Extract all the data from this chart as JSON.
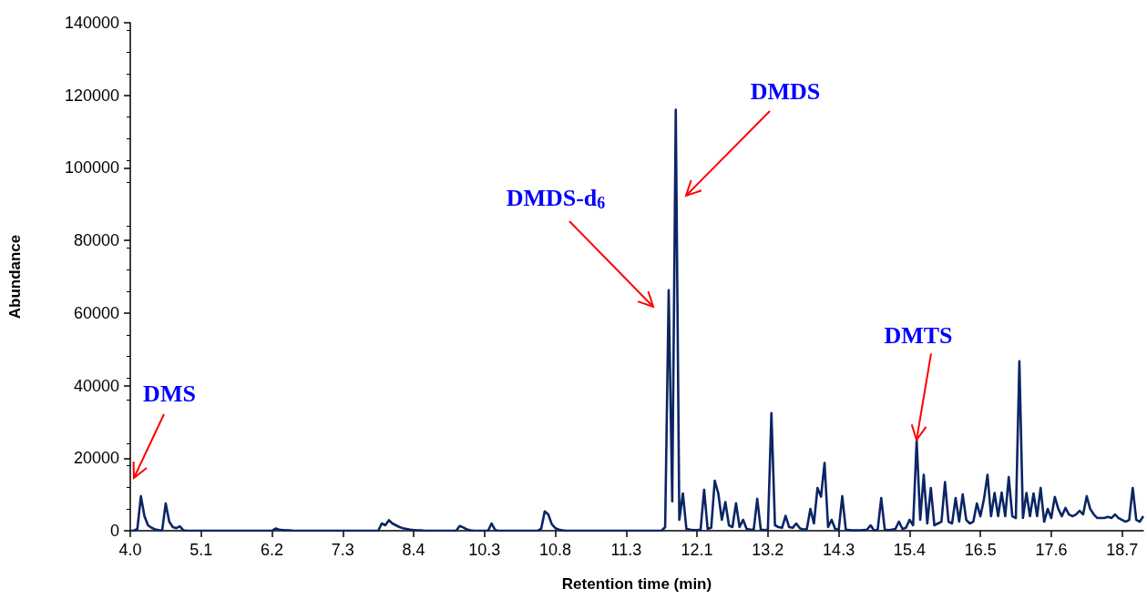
{
  "chart_data": {
    "type": "line",
    "xlabel": "Retention time (min)",
    "ylabel": "Abundance",
    "categories": [
      "4.0",
      null,
      null,
      null,
      null,
      null,
      null,
      null,
      null,
      null,
      null,
      null,
      null,
      null,
      null,
      null,
      null,
      null,
      null,
      null,
      "5.1",
      null,
      null,
      null,
      null,
      null,
      null,
      null,
      null,
      null,
      null,
      null,
      null,
      null,
      null,
      null,
      null,
      null,
      null,
      null,
      "6.2",
      null,
      null,
      null,
      null,
      null,
      null,
      null,
      null,
      null,
      null,
      null,
      null,
      null,
      null,
      null,
      null,
      null,
      null,
      null,
      "7.3",
      null,
      null,
      null,
      null,
      null,
      null,
      null,
      null,
      null,
      null,
      null,
      null,
      null,
      null,
      null,
      null,
      null,
      null,
      null,
      "8.4",
      null,
      null,
      null,
      null,
      null,
      null,
      null,
      null,
      null,
      null,
      null,
      null,
      null,
      null,
      null,
      null,
      null,
      null,
      null,
      "10.3",
      null,
      null,
      null,
      null,
      null,
      null,
      null,
      null,
      null,
      null,
      null,
      null,
      null,
      null,
      null,
      null,
      null,
      null,
      null,
      "10.8",
      null,
      null,
      null,
      null,
      null,
      null,
      null,
      null,
      null,
      null,
      null,
      null,
      null,
      null,
      null,
      null,
      null,
      null,
      null,
      "11.3",
      null,
      null,
      null,
      null,
      null,
      null,
      null,
      null,
      null,
      null,
      null,
      null,
      null,
      null,
      null,
      null,
      null,
      null,
      null,
      "12.1",
      null,
      null,
      null,
      null,
      null,
      null,
      null,
      null,
      null,
      null,
      null,
      null,
      null,
      null,
      null,
      null,
      null,
      null,
      null,
      "13.2",
      null,
      null,
      null,
      null,
      null,
      null,
      null,
      null,
      null,
      null,
      null,
      null,
      null,
      null,
      null,
      null,
      null,
      null,
      null,
      "14.3",
      null,
      null,
      null,
      null,
      null,
      null,
      null,
      null,
      null,
      null,
      null,
      null,
      null,
      null,
      null,
      null,
      null,
      null,
      null,
      "15.4",
      null,
      null,
      null,
      null,
      null,
      null,
      null,
      null,
      null,
      null,
      null,
      null,
      null,
      null,
      null,
      null,
      null,
      null,
      null,
      "16.5",
      null,
      null,
      null,
      null,
      null,
      null,
      null,
      null,
      null,
      null,
      null,
      null,
      null,
      null,
      null,
      null,
      null,
      null,
      null,
      "17.6",
      null,
      null,
      null,
      null,
      null,
      null,
      null,
      null,
      null,
      null,
      null,
      null,
      null,
      null,
      null,
      null,
      null,
      null,
      null,
      "18.7",
      null,
      null,
      null,
      null,
      null,
      null
    ],
    "ylim": [
      0,
      140000
    ],
    "yticks": [
      0,
      20000,
      40000,
      60000,
      80000,
      100000,
      120000,
      140000
    ],
    "grid": false,
    "marker": "none",
    "line_style": "solid",
    "series": [
      {
        "color": "#0b2565",
        "values": [
          0,
          0,
          500,
          9500,
          4000,
          1500,
          800,
          400,
          200,
          100,
          7500,
          2500,
          1000,
          700,
          1200,
          100,
          0,
          0,
          0,
          0,
          0,
          0,
          0,
          0,
          0,
          0,
          0,
          0,
          0,
          0,
          0,
          0,
          0,
          0,
          0,
          0,
          0,
          0,
          0,
          0,
          0,
          600,
          300,
          200,
          100,
          100,
          0,
          0,
          0,
          0,
          0,
          0,
          0,
          0,
          0,
          0,
          0,
          0,
          0,
          0,
          0,
          0,
          0,
          0,
          0,
          0,
          0,
          0,
          0,
          0,
          0,
          2000,
          1500,
          2900,
          2000,
          1500,
          1000,
          700,
          500,
          300,
          200,
          100,
          100,
          0,
          0,
          0,
          0,
          0,
          0,
          0,
          0,
          0,
          0,
          1300,
          900,
          400,
          100,
          0,
          0,
          0,
          0,
          0,
          2000,
          200,
          0,
          0,
          0,
          0,
          0,
          0,
          0,
          0,
          0,
          0,
          0,
          0,
          500,
          5300,
          4500,
          1800,
          700,
          300,
          100,
          0,
          0,
          0,
          0,
          0,
          0,
          0,
          0,
          0,
          0,
          0,
          0,
          0,
          0,
          0,
          0,
          0,
          0,
          0,
          0,
          0,
          0,
          0,
          0,
          0,
          0,
          0,
          0,
          1000,
          66300,
          8100,
          116000,
          3000,
          10300,
          500,
          300,
          200,
          200,
          300,
          11300,
          500,
          800,
          13800,
          10300,
          3000,
          7900,
          1500,
          1000,
          7600,
          1000,
          3000,
          500,
          300,
          300,
          8800,
          300,
          200,
          300,
          32400,
          1500,
          1000,
          800,
          4100,
          1000,
          800,
          2000,
          700,
          300,
          500,
          6000,
          2000,
          11800,
          9400,
          18700,
          1000,
          3000,
          500,
          300,
          9500,
          300,
          200,
          100,
          100,
          100,
          200,
          300,
          1500,
          0,
          300,
          9000,
          300,
          200,
          300,
          500,
          2500,
          500,
          800,
          3000,
          1500,
          24900,
          3000,
          15400,
          2000,
          11800,
          1500,
          2000,
          2500,
          13400,
          2500,
          2000,
          9000,
          2500,
          10000,
          3000,
          2000,
          2500,
          7500,
          4000,
          8700,
          15400,
          4000,
          10400,
          4000,
          10500,
          4000,
          14800,
          4000,
          3500,
          46700,
          3500,
          10400,
          4000,
          10300,
          4000,
          11800,
          2500,
          6000,
          3500,
          9300,
          6000,
          4000,
          6300,
          4500,
          4000,
          4500,
          5500,
          4500,
          9500,
          6000,
          4500,
          3500,
          3500,
          3500,
          3800,
          3500,
          4500,
          3500,
          3000,
          2500,
          3000,
          11800,
          3000,
          2500,
          4000
        ]
      }
    ],
    "annotations": [
      "DMS",
      "DMDS-d$_{6}$",
      "DMDS",
      {
        "text": "DMTS",
        "y": 25000
      }
    ]
  }
}
